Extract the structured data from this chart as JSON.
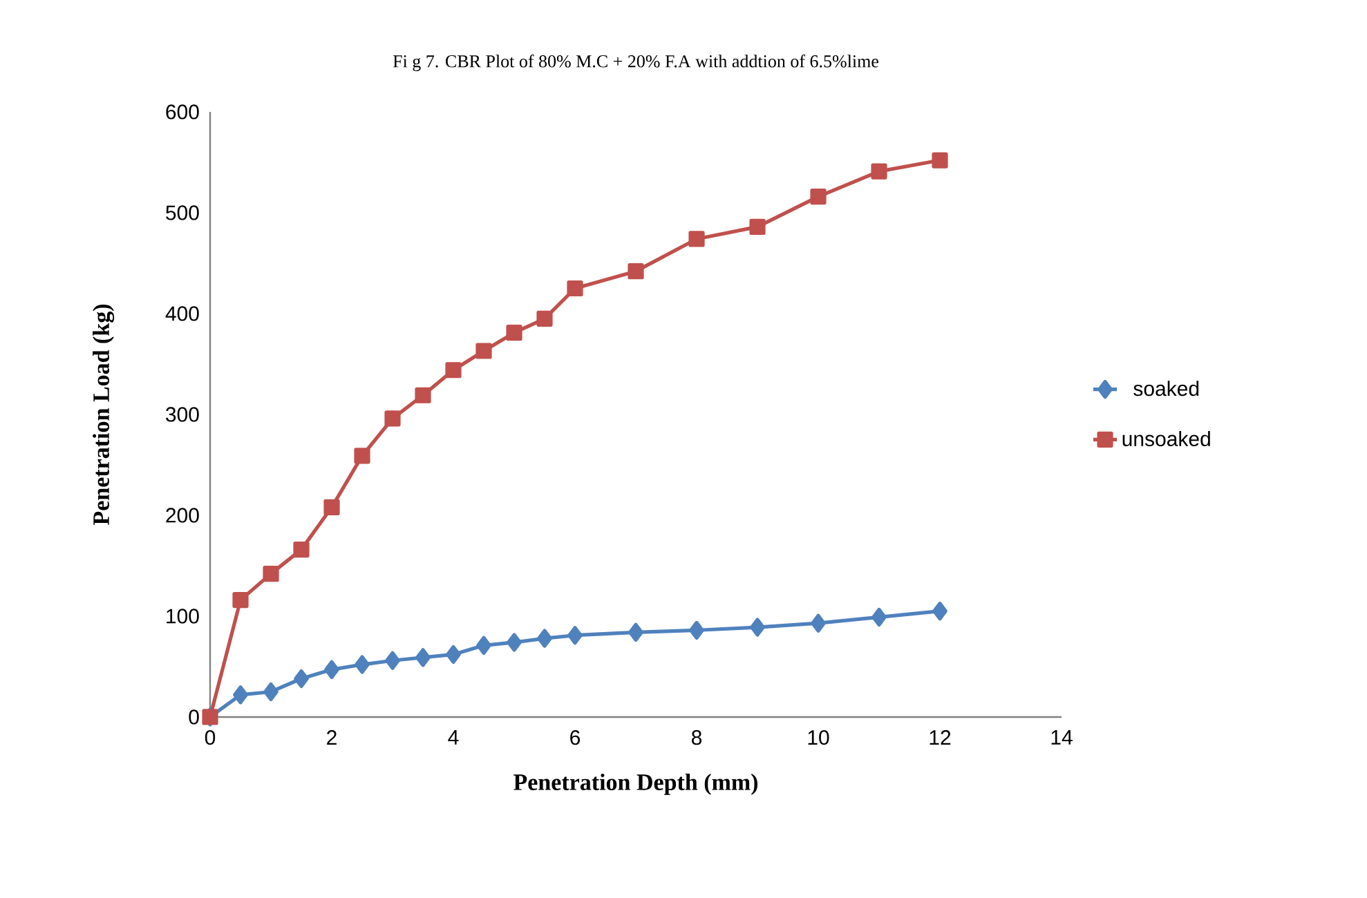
{
  "chart_data": {
    "type": "line",
    "title": "Fi g 7.  CBR  Plot of 80% M.C  + 20% F.A with  addtion  of  6.5%lime",
    "xlabel": "Penetration Depth (mm)",
    "ylabel": "Penetration Load (kg)",
    "x": [
      0,
      0.5,
      1,
      1.5,
      2,
      2.5,
      3,
      3.5,
      4,
      4.5,
      5,
      5.5,
      6,
      7,
      8,
      9,
      10,
      11,
      12
    ],
    "series": [
      {
        "name": "soaked",
        "color": "#4f81bd",
        "marker": "diamond",
        "values": [
          0,
          22,
          25,
          38,
          47,
          52,
          56,
          59,
          62,
          71,
          74,
          78,
          81,
          84,
          86,
          89,
          93,
          99,
          105
        ]
      },
      {
        "name": "unsoaked",
        "color": "#c0504d",
        "marker": "square",
        "values": [
          0,
          116,
          142,
          166,
          208,
          259,
          296,
          319,
          344,
          363,
          381,
          395,
          425,
          442,
          474,
          486,
          516,
          541,
          552
        ]
      }
    ],
    "xlim": [
      0,
      14
    ],
    "xticks": [
      0,
      2,
      4,
      6,
      8,
      10,
      12,
      14
    ],
    "ylim": [
      0,
      600
    ],
    "yticks": [
      0,
      100,
      200,
      300,
      400,
      500,
      600
    ],
    "grid": false,
    "legend": "right",
    "line_style": "solid"
  }
}
